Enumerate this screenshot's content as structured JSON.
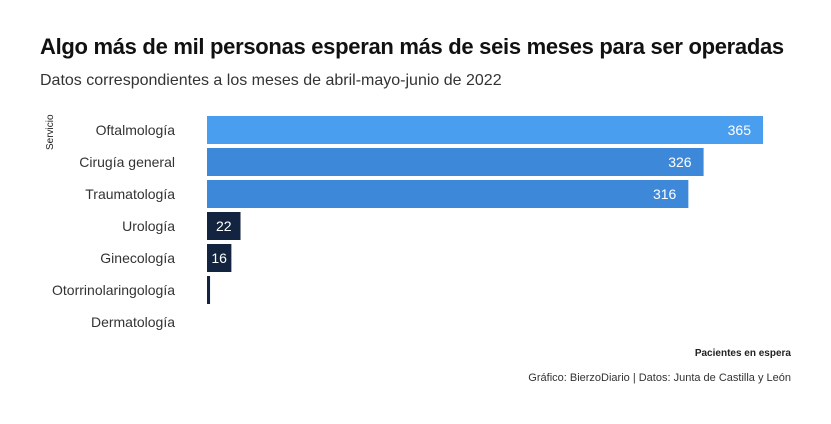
{
  "chart_data": {
    "type": "bar",
    "orientation": "horizontal",
    "title": "Algo más de mil personas esperan más de seis meses para ser operadas",
    "subtitle": "Datos correspondientes a los meses de abril-mayo-junio de 2022",
    "ylabel": "Servicio",
    "xlabel": "Pacientes en espera",
    "categories": [
      "Oftalmología",
      "Cirugía general",
      "Traumatología",
      "Urología",
      "Ginecología",
      "Otorrinolaringología",
      "Dermatología"
    ],
    "values": [
      365,
      326,
      316,
      22,
      16,
      2,
      0
    ],
    "data_labels": [
      "365",
      "326",
      "316",
      "22",
      "16",
      "",
      ""
    ],
    "xlim": [
      0,
      365
    ],
    "grid": false,
    "colors": {
      "high": "#4a9ef0",
      "mid": "#3d88d8",
      "low": "#132440",
      "label": "#ffffff"
    },
    "caption": "Gráfico: BierzoDiario | Datos: Junta de Castilla y León"
  }
}
